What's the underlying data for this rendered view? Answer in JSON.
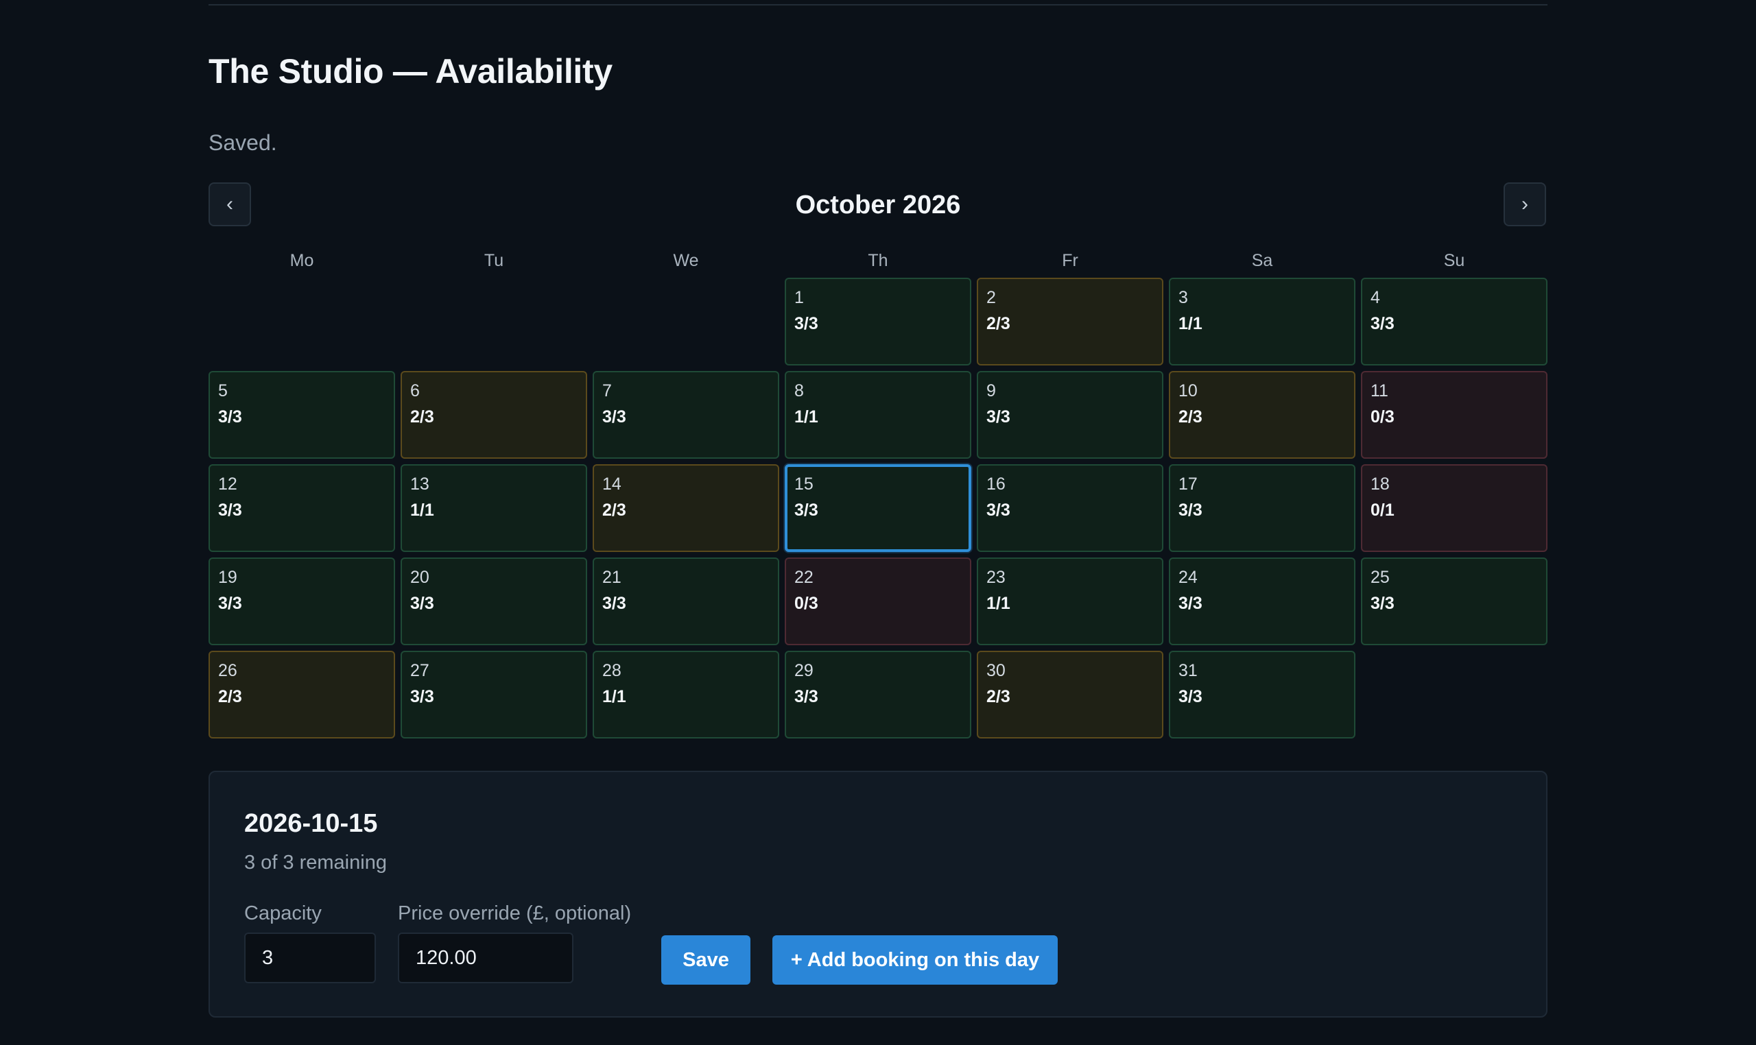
{
  "page": {
    "title": "The Studio — Availability",
    "status": "Saved."
  },
  "calendar": {
    "month_label": "October 2026",
    "prev_icon": "‹",
    "next_icon": "›",
    "weekdays": [
      "Mo",
      "Tu",
      "We",
      "Th",
      "Fr",
      "Sa",
      "Su"
    ],
    "first_weekday_index": 3,
    "selected_day": 15,
    "days": [
      {
        "day": "1",
        "count": "3/3",
        "status": "available"
      },
      {
        "day": "2",
        "count": "2/3",
        "status": "partial"
      },
      {
        "day": "3",
        "count": "1/1",
        "status": "available"
      },
      {
        "day": "4",
        "count": "3/3",
        "status": "available"
      },
      {
        "day": "5",
        "count": "3/3",
        "status": "available"
      },
      {
        "day": "6",
        "count": "2/3",
        "status": "partial"
      },
      {
        "day": "7",
        "count": "3/3",
        "status": "available"
      },
      {
        "day": "8",
        "count": "1/1",
        "status": "available"
      },
      {
        "day": "9",
        "count": "3/3",
        "status": "available"
      },
      {
        "day": "10",
        "count": "2/3",
        "status": "partial"
      },
      {
        "day": "11",
        "count": "0/3",
        "status": "full"
      },
      {
        "day": "12",
        "count": "3/3",
        "status": "available"
      },
      {
        "day": "13",
        "count": "1/1",
        "status": "available"
      },
      {
        "day": "14",
        "count": "2/3",
        "status": "partial"
      },
      {
        "day": "15",
        "count": "3/3",
        "status": "available"
      },
      {
        "day": "16",
        "count": "3/3",
        "status": "available"
      },
      {
        "day": "17",
        "count": "3/3",
        "status": "available"
      },
      {
        "day": "18",
        "count": "0/1",
        "status": "full"
      },
      {
        "day": "19",
        "count": "3/3",
        "status": "available"
      },
      {
        "day": "20",
        "count": "3/3",
        "status": "available"
      },
      {
        "day": "21",
        "count": "3/3",
        "status": "available"
      },
      {
        "day": "22",
        "count": "0/3",
        "status": "full"
      },
      {
        "day": "23",
        "count": "1/1",
        "status": "available"
      },
      {
        "day": "24",
        "count": "3/3",
        "status": "available"
      },
      {
        "day": "25",
        "count": "3/3",
        "status": "available"
      },
      {
        "day": "26",
        "count": "2/3",
        "status": "partial"
      },
      {
        "day": "27",
        "count": "3/3",
        "status": "available"
      },
      {
        "day": "28",
        "count": "1/1",
        "status": "available"
      },
      {
        "day": "29",
        "count": "3/3",
        "status": "available"
      },
      {
        "day": "30",
        "count": "2/3",
        "status": "partial"
      },
      {
        "day": "31",
        "count": "3/3",
        "status": "available"
      }
    ]
  },
  "detail": {
    "date": "2026-10-15",
    "remaining": "3 of 3 remaining",
    "capacity_label": "Capacity",
    "capacity_value": "3",
    "price_label": "Price override (£, optional)",
    "price_value": "120.00",
    "save_label": "Save",
    "add_booking_label": "+ Add booking on this day"
  },
  "colors": {
    "background": "#0b1118",
    "available": "#0f2019",
    "partial": "#1f2115",
    "full": "#1f171d",
    "accent": "#2a86d8"
  }
}
